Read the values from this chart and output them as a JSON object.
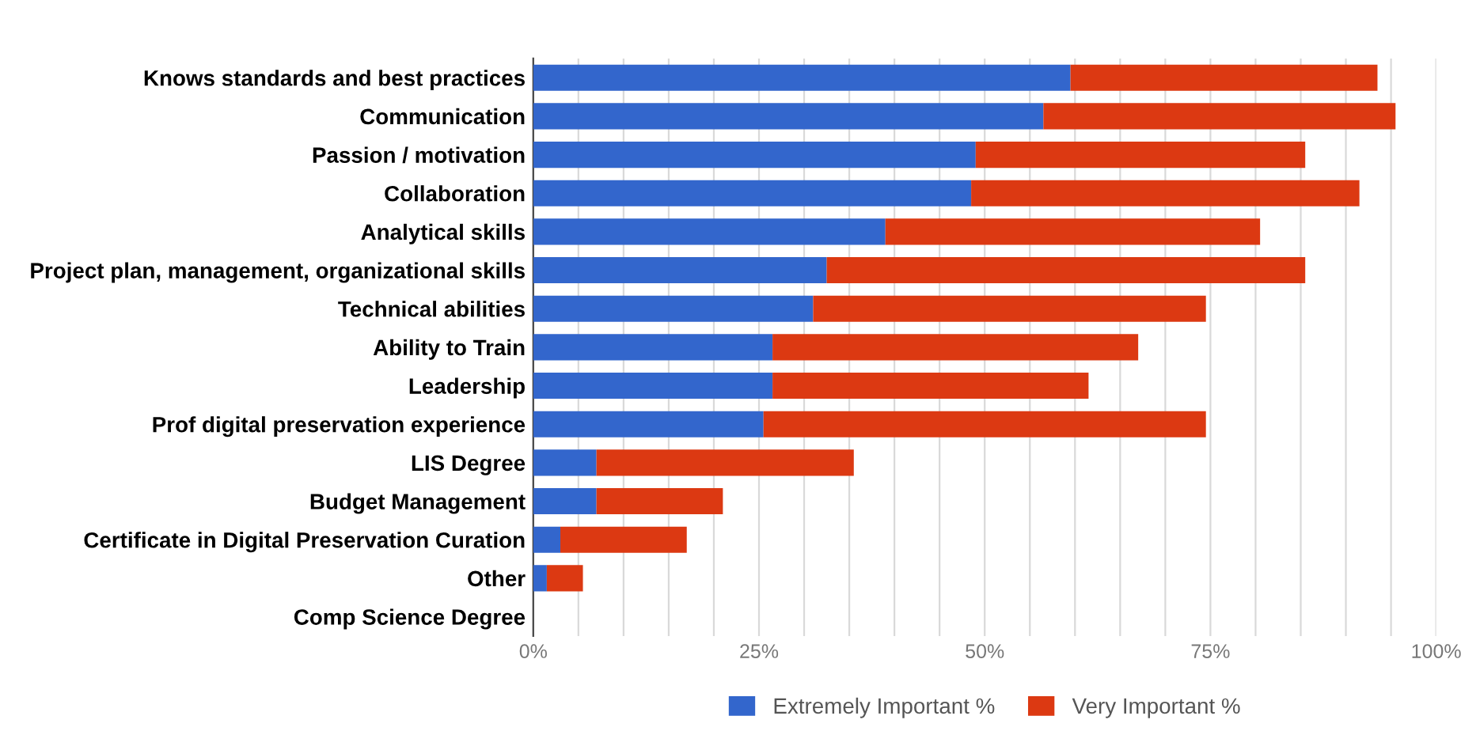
{
  "chart_data": {
    "type": "bar",
    "orientation": "horizontal",
    "stacked": true,
    "categories": [
      "Knows standards and best practices",
      "Communication",
      "Passion / motivation",
      "Collaboration",
      "Analytical skills",
      "Project plan, management, organizational skills",
      "Technical abilities",
      "Ability to Train",
      "Leadership",
      "Prof digital preservation experience",
      "LIS Degree",
      "Budget Management",
      "Certificate in Digital Preservation Curation",
      "Other",
      "Comp Science Degree"
    ],
    "series": [
      {
        "name": "Extremely Important %",
        "color": "#3366cc",
        "values": [
          59.5,
          56.5,
          49,
          48.5,
          39,
          32.5,
          31,
          26.5,
          26.5,
          25.5,
          7,
          7,
          3,
          1.5,
          0
        ]
      },
      {
        "name": "Very Important %",
        "color": "#dc3912",
        "values": [
          34,
          39,
          36.5,
          43,
          41.5,
          53,
          43.5,
          40.5,
          35,
          49,
          28.5,
          14,
          14,
          4,
          0
        ]
      }
    ],
    "xlim": [
      0,
      100
    ],
    "xticks": [
      {
        "value": 0,
        "label": "0%"
      },
      {
        "value": 5,
        "label": null
      },
      {
        "value": 10,
        "label": null
      },
      {
        "value": 15,
        "label": null
      },
      {
        "value": 20,
        "label": null
      },
      {
        "value": 25,
        "label": "25%"
      },
      {
        "value": 30,
        "label": null
      },
      {
        "value": 35,
        "label": null
      },
      {
        "value": 40,
        "label": null
      },
      {
        "value": 45,
        "label": null
      },
      {
        "value": 50,
        "label": "50%"
      },
      {
        "value": 55,
        "label": null
      },
      {
        "value": 60,
        "label": null
      },
      {
        "value": 65,
        "label": null
      },
      {
        "value": 70,
        "label": null
      },
      {
        "value": 75,
        "label": "75%"
      },
      {
        "value": 80,
        "label": null
      },
      {
        "value": 85,
        "label": null
      },
      {
        "value": 90,
        "label": null
      },
      {
        "value": 95,
        "label": null
      },
      {
        "value": 100,
        "label": "100%"
      }
    ],
    "grid": "x",
    "legend": "bottom"
  }
}
